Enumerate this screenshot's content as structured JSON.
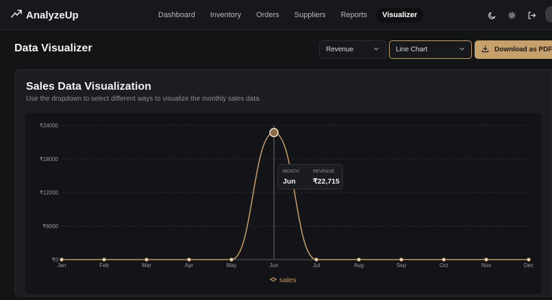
{
  "app": {
    "name": "AnalyzeUp"
  },
  "nav": [
    {
      "label": "Dashboard",
      "active": false
    },
    {
      "label": "Inventory",
      "active": false
    },
    {
      "label": "Orders",
      "active": false
    },
    {
      "label": "Suppliers",
      "active": false
    },
    {
      "label": "Reports",
      "active": false
    },
    {
      "label": "Visualizer",
      "active": true
    }
  ],
  "page": {
    "title": "Data Visualizer"
  },
  "controls": {
    "metric_select": "Revenue",
    "chart_type_select": "Line Chart",
    "download_label": "Download as PDF"
  },
  "panel": {
    "title": "Sales Data Visualization",
    "subtitle": "Use the dropdown to select different ways to visualize the monthly sales data."
  },
  "tooltip": {
    "month_header": "MONTH",
    "revenue_header": "REVENUE",
    "month_value": "Jun",
    "revenue_value": "₹22,715"
  },
  "colors": {
    "accent": "#c7a06b",
    "line": "#c49a62",
    "background": "#131416"
  },
  "chart_data": {
    "type": "line",
    "categories": [
      "Jan",
      "Feb",
      "Mar",
      "Apr",
      "May",
      "Jun",
      "Jul",
      "Aug",
      "Sep",
      "Oct",
      "Nov",
      "Dec"
    ],
    "series": [
      {
        "name": "sales",
        "values": [
          0,
          0,
          0,
          0,
          0,
          22715,
          0,
          0,
          0,
          0,
          0,
          0
        ]
      }
    ],
    "yticks": [
      0,
      6000,
      12000,
      18000,
      24000
    ],
    "ytick_labels": [
      "₹0",
      "₹6000",
      "₹12000",
      "₹18000",
      "₹24000"
    ],
    "ylim": [
      0,
      24000
    ],
    "grid": true,
    "legend": "bottom-center",
    "highlight_index": 5
  }
}
